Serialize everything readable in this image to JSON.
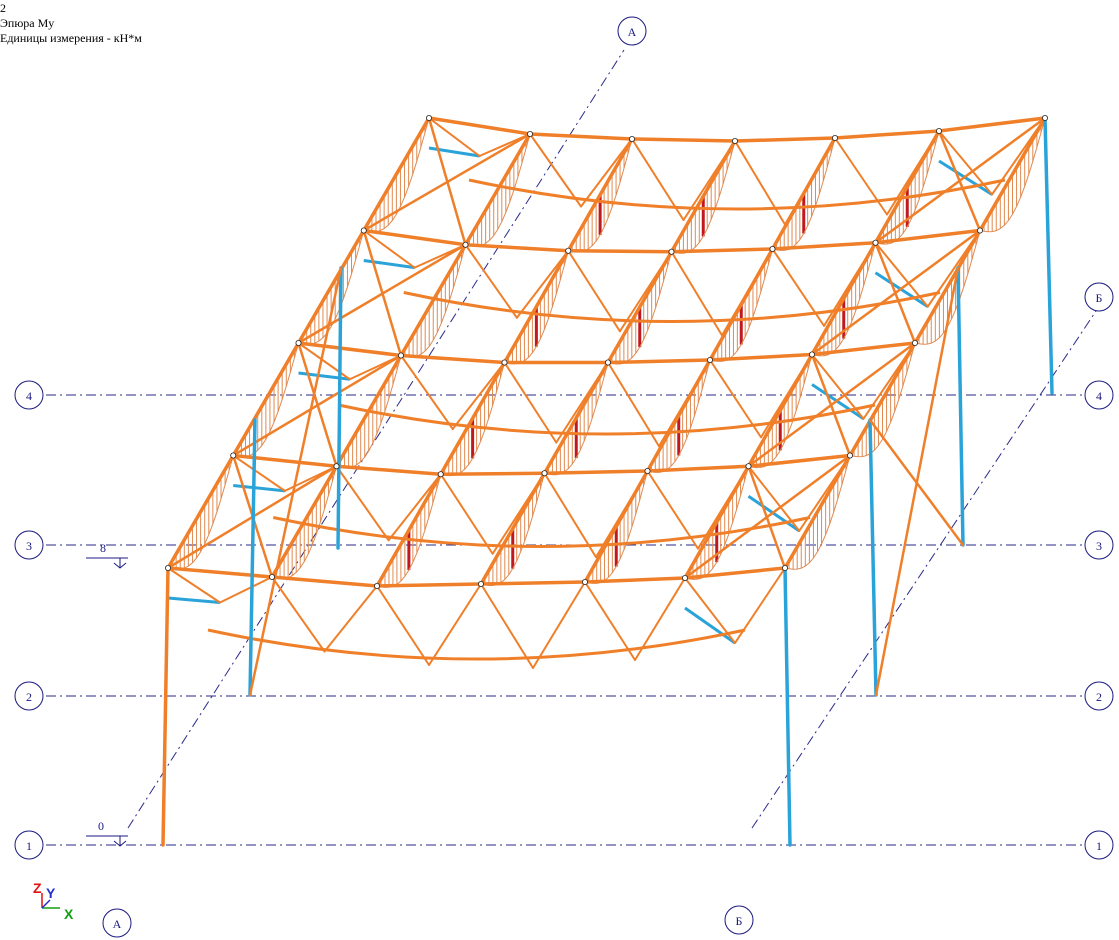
{
  "header": {
    "line1": "2",
    "line2": "Эпюра My",
    "line3": "Единицы измерения - кН*м"
  },
  "grid": {
    "rows": [
      "1",
      "2",
      "3",
      "4"
    ],
    "cols": [
      "А",
      "Б"
    ]
  },
  "levels": {
    "lower": "0",
    "upper": "8"
  },
  "axes_icon": {
    "z": "Z",
    "y": "Y",
    "x": "X"
  },
  "colors": {
    "member": "#f07f2a",
    "brace": "#2aa3d9",
    "diagram_hatch": "#e08a50",
    "diagram_peak": "#c0181e",
    "grid_line": "#2a2a8a",
    "node": "#ffffff"
  }
}
